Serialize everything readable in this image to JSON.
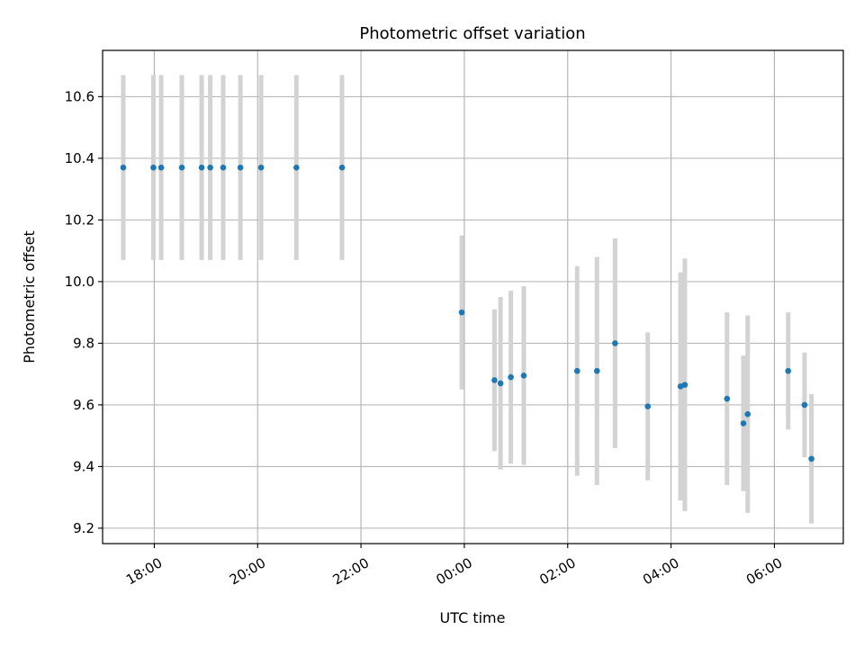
{
  "chart_data": {
    "type": "scatter",
    "title": "Photometric offset variation",
    "xlabel": "UTC time",
    "ylabel": "Photometric offset",
    "x_axis_type": "time",
    "x_ticks": [
      "18:00",
      "20:00",
      "22:00",
      "00:00",
      "02:00",
      "04:00",
      "06:00"
    ],
    "y_ticks": [
      "9.2",
      "9.4",
      "9.6",
      "9.8",
      "10.0",
      "10.2",
      "10.4",
      "10.6"
    ],
    "ylim": [
      9.15,
      10.75
    ],
    "xlim": [
      "17:00",
      "07:20"
    ],
    "grid": true,
    "colors": {
      "point": "#1f77b4",
      "errorbar": "#d3d3d3",
      "grid": "#b0b0b0"
    },
    "series": [
      {
        "points": [
          {
            "x": "17:24",
            "y": 10.37,
            "err": 0.3
          },
          {
            "x": "17:59",
            "y": 10.37,
            "err": 0.3
          },
          {
            "x": "18:08",
            "y": 10.37,
            "err": 0.3
          },
          {
            "x": "18:32",
            "y": 10.37,
            "err": 0.3
          },
          {
            "x": "18:55",
            "y": 10.37,
            "err": 0.3
          },
          {
            "x": "19:05",
            "y": 10.37,
            "err": 0.3
          },
          {
            "x": "19:20",
            "y": 10.37,
            "err": 0.3
          },
          {
            "x": "19:40",
            "y": 10.37,
            "err": 0.3
          },
          {
            "x": "20:04",
            "y": 10.37,
            "err": 0.3
          },
          {
            "x": "20:45",
            "y": 10.37,
            "err": 0.3
          },
          {
            "x": "21:38",
            "y": 10.37,
            "err": 0.3
          },
          {
            "x": "23:57",
            "y": 9.9,
            "err": 0.25
          },
          {
            "x": "00:35",
            "y": 9.68,
            "err": 0.23
          },
          {
            "x": "00:42",
            "y": 9.67,
            "err": 0.28
          },
          {
            "x": "00:54",
            "y": 9.69,
            "err": 0.28
          },
          {
            "x": "01:09",
            "y": 9.695,
            "err": 0.29
          },
          {
            "x": "02:11",
            "y": 9.71,
            "err": 0.34
          },
          {
            "x": "02:34",
            "y": 9.71,
            "err": 0.37
          },
          {
            "x": "02:55",
            "y": 9.8,
            "err": 0.34
          },
          {
            "x": "03:33",
            "y": 9.595,
            "err": 0.24
          },
          {
            "x": "04:11",
            "y": 9.66,
            "err": 0.37
          },
          {
            "x": "04:16",
            "y": 9.665,
            "err": 0.41
          },
          {
            "x": "05:05",
            "y": 9.62,
            "err": 0.28
          },
          {
            "x": "05:24",
            "y": 9.54,
            "err": 0.22
          },
          {
            "x": "05:29",
            "y": 9.57,
            "err": 0.32
          },
          {
            "x": "06:16",
            "y": 9.71,
            "err": 0.19
          },
          {
            "x": "06:35",
            "y": 9.6,
            "err": 0.17
          },
          {
            "x": "06:43",
            "y": 9.425,
            "err": 0.21
          }
        ]
      }
    ]
  }
}
